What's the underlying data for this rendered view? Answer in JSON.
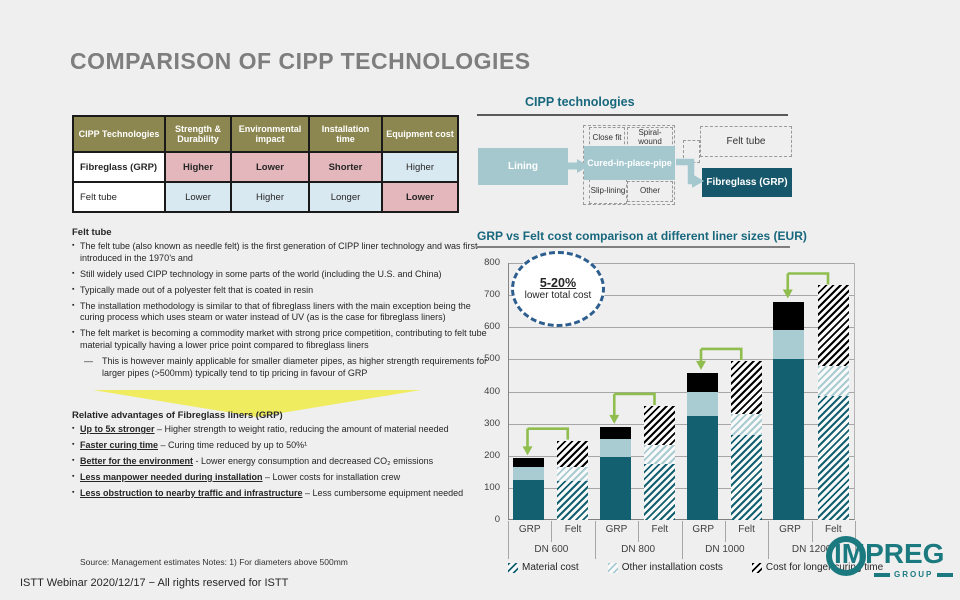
{
  "slide": {
    "title": "COMPARISON OF CIPP TECHNOLOGIES",
    "source_note": "Source: Management estimates Notes: 1) For diameters above 500mm",
    "footer": "ISTT Webinar 2020/12/17 − All rights reserved for ISTT"
  },
  "table": {
    "headers": [
      "CIPP Technologies",
      "Strength & Durability",
      "Environmental impact",
      "Installation time",
      "Equipment cost"
    ],
    "rows": [
      {
        "label": "Fibreglass (GRP)",
        "cells": [
          {
            "text": "Higher"
          },
          {
            "text": "Lower"
          },
          {
            "text": "Shorter"
          },
          {
            "text": "Higher"
          }
        ]
      },
      {
        "label": "Felt tube",
        "cells": [
          {
            "text": "Lower"
          },
          {
            "text": "Higher"
          },
          {
            "text": "Longer"
          },
          {
            "text": "Lower"
          }
        ]
      }
    ]
  },
  "felt_section": {
    "heading": "Felt tube",
    "bullets": [
      "The felt tube (also known as needle felt) is the first generation of CIPP liner technology and was first introduced in the 1970’s and",
      "Still widely used CIPP technology in some parts of the world (including the U.S. and China)",
      "Typically made out of a polyester felt that is coated in resin",
      "The installation methodology is similar to that of fibreglass liners with the main exception being the curing process which uses steam or water instead of UV (as is the case for fibreglass liners)",
      "The felt market is becoming a commodity market with strong price competition, contributing to felt tube material typically having a lower price point compared to fibreglass liners"
    ],
    "sub_bullet": "This is however mainly applicable for smaller diameter pipes, as higher strength requirements for larger pipes (>500mm) typically tend to tip pricing in favour of GRP"
  },
  "advantages": {
    "heading": "Relative advantages of Fibreglass liners (GRP)",
    "items": [
      {
        "lead": "Up to 5x stronger",
        "rest": " – Higher strength to weight ratio, reducing the amount of material needed"
      },
      {
        "lead": "Faster curing time",
        "rest": " – Curing time reduced by up to 50%¹"
      },
      {
        "lead": "Better for the environment",
        "rest": " - Lower energy consumption and decreased CO₂ emissions"
      },
      {
        "lead": "Less manpower needed during installation",
        "rest": " – Lower costs for installation crew"
      },
      {
        "lead": "Less obstruction to nearby traffic and infrastructure",
        "rest": " – Less cumbersome equipment needed"
      }
    ]
  },
  "diagram": {
    "title": "CIPP technologies",
    "lining": "Lining",
    "close_fit": "Close fit",
    "spiral_wound": "Spiral-wound",
    "cipp": "Cured-in-place-pipe",
    "slip_lining": "Slip-lining",
    "other": "Other",
    "felt_tube": "Felt tube",
    "fibreglass": "Fibreglass (GRP)"
  },
  "chart_data": {
    "type": "bar",
    "stacked": true,
    "title": "GRP vs Felt cost comparison at different liner sizes (EUR)",
    "ylim": [
      0,
      800
    ],
    "ytick_step": 100,
    "grid": true,
    "legend_position": "bottom",
    "groups": [
      "DN 600",
      "DN 800",
      "DN 1000",
      "DN 1200"
    ],
    "bar_labels": [
      "GRP",
      "Felt"
    ],
    "felt_style": "hatched",
    "series": [
      {
        "name": "Material cost",
        "color": "#136170",
        "grp": [
          125,
          195,
          325,
          500
        ],
        "felt": [
          120,
          175,
          265,
          385
        ]
      },
      {
        "name": "Other installation costs",
        "color": "#a9cbd2",
        "grp": [
          40,
          57,
          73,
          90
        ],
        "felt": [
          45,
          60,
          65,
          95
        ]
      },
      {
        "name": "Cost for longer curing time",
        "color": "#000000",
        "grp": [
          27,
          38,
          60,
          90
        ],
        "felt": [
          82,
          120,
          165,
          250
        ]
      }
    ],
    "totals": {
      "grp": [
        192,
        290,
        458,
        680
      ],
      "felt": [
        247,
        355,
        495,
        730
      ]
    },
    "annotation": {
      "headline": "5-20%",
      "text": "lower total cost"
    }
  },
  "logo": {
    "word": "IMPREG",
    "sub": "GROUP"
  },
  "colors": {
    "slide_bg": "#efefef",
    "title_gray": "#7e7e7e",
    "table_header_olive": "#8c8750",
    "cell_pink": "#e3b7bb",
    "cell_blue": "#d9e9f1",
    "teal_heading": "#17677d",
    "light_teal_box": "#a5c8cf",
    "dark_teal_box": "#16576b",
    "bar_teal": "#136170",
    "bar_light": "#a9cbd2",
    "bar_black": "#000000",
    "green_arrow": "#8fbe4f",
    "callout_blue": "#2e5e8e",
    "highlight_yellow": "#f0eb52",
    "logo_teal": "#1b7a80"
  }
}
